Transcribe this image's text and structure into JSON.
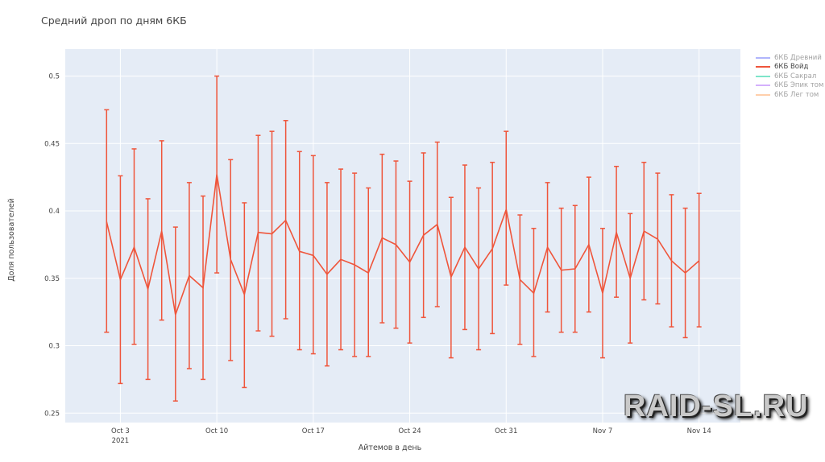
{
  "chart_data": {
    "type": "line",
    "title": "Средний дроп по дням 6КБ",
    "xlabel": "Айтемов в день",
    "ylabel": "Доля пользователей",
    "ylim": [
      0.243,
      0.52
    ],
    "xlim": [
      "2021-09-29",
      "2021-11-17"
    ],
    "yticks": [
      0.25,
      0.3,
      0.35,
      0.4,
      0.45,
      0.5
    ],
    "xticks": [
      {
        "date": "2021-10-03",
        "label": "Oct 3",
        "sublabel": "2021"
      },
      {
        "date": "2021-10-10",
        "label": "Oct 10",
        "sublabel": ""
      },
      {
        "date": "2021-10-17",
        "label": "Oct 17",
        "sublabel": ""
      },
      {
        "date": "2021-10-24",
        "label": "Oct 24",
        "sublabel": ""
      },
      {
        "date": "2021-10-31",
        "label": "Oct 31",
        "sublabel": ""
      },
      {
        "date": "2021-11-07",
        "label": "Nov 7",
        "sublabel": ""
      },
      {
        "date": "2021-11-14",
        "label": "Nov 14",
        "sublabel": ""
      }
    ],
    "grid": true,
    "legend_position": "top-right",
    "series": [
      {
        "name": "6КБ Древний",
        "color": "#636efa",
        "visible": false,
        "x": [],
        "y": []
      },
      {
        "name": "6КБ Войд",
        "color": "#ef553b",
        "visible": true,
        "x": [
          "2021-10-02",
          "2021-10-03",
          "2021-10-04",
          "2021-10-05",
          "2021-10-06",
          "2021-10-07",
          "2021-10-08",
          "2021-10-09",
          "2021-10-10",
          "2021-10-11",
          "2021-10-12",
          "2021-10-13",
          "2021-10-14",
          "2021-10-15",
          "2021-10-16",
          "2021-10-17",
          "2021-10-18",
          "2021-10-19",
          "2021-10-20",
          "2021-10-21",
          "2021-10-22",
          "2021-10-23",
          "2021-10-24",
          "2021-10-25",
          "2021-10-26",
          "2021-10-27",
          "2021-10-28",
          "2021-10-29",
          "2021-10-30",
          "2021-10-31",
          "2021-11-01",
          "2021-11-02",
          "2021-11-03",
          "2021-11-04",
          "2021-11-05",
          "2021-11-06",
          "2021-11-07",
          "2021-11-08",
          "2021-11-09",
          "2021-11-10",
          "2021-11-11",
          "2021-11-12",
          "2021-11-13",
          "2021-11-14"
        ],
        "y": [
          0.392,
          0.349,
          0.373,
          0.342,
          0.385,
          0.323,
          0.352,
          0.343,
          0.427,
          0.364,
          0.338,
          0.384,
          0.383,
          0.393,
          0.37,
          0.367,
          0.353,
          0.364,
          0.36,
          0.354,
          0.38,
          0.375,
          0.362,
          0.382,
          0.39,
          0.351,
          0.373,
          0.357,
          0.372,
          0.401,
          0.349,
          0.339,
          0.373,
          0.356,
          0.357,
          0.375,
          0.339,
          0.384,
          0.35,
          0.385,
          0.379,
          0.363,
          0.354,
          0.363
        ],
        "err_high": [
          0.475,
          0.426,
          0.446,
          0.409,
          0.452,
          0.388,
          0.421,
          0.411,
          0.5,
          0.438,
          0.406,
          0.456,
          0.459,
          0.467,
          0.444,
          0.441,
          0.421,
          0.431,
          0.428,
          0.417,
          0.442,
          0.437,
          0.422,
          0.443,
          0.451,
          0.41,
          0.434,
          0.417,
          0.436,
          0.459,
          0.397,
          0.387,
          0.421,
          0.402,
          0.404,
          0.425,
          0.387,
          0.433,
          0.398,
          0.436,
          0.428,
          0.412,
          0.402,
          0.413
        ],
        "err_low": [
          0.31,
          0.272,
          0.301,
          0.275,
          0.319,
          0.259,
          0.283,
          0.275,
          0.354,
          0.289,
          0.269,
          0.311,
          0.307,
          0.32,
          0.297,
          0.294,
          0.285,
          0.297,
          0.292,
          0.292,
          0.317,
          0.313,
          0.302,
          0.321,
          0.329,
          0.291,
          0.312,
          0.297,
          0.309,
          0.345,
          0.301,
          0.292,
          0.325,
          0.31,
          0.31,
          0.325,
          0.291,
          0.336,
          0.302,
          0.334,
          0.331,
          0.314,
          0.306,
          0.314
        ]
      },
      {
        "name": "6КБ Сакрал",
        "color": "#00cc96",
        "visible": false,
        "x": [],
        "y": []
      },
      {
        "name": "6КБ Эпик том",
        "color": "#ab63fa",
        "visible": false,
        "x": [],
        "y": []
      },
      {
        "name": "6КБ Лег том",
        "color": "#ffa15a",
        "visible": false,
        "x": [],
        "y": []
      }
    ]
  },
  "watermark": "RAID-SL.RU"
}
